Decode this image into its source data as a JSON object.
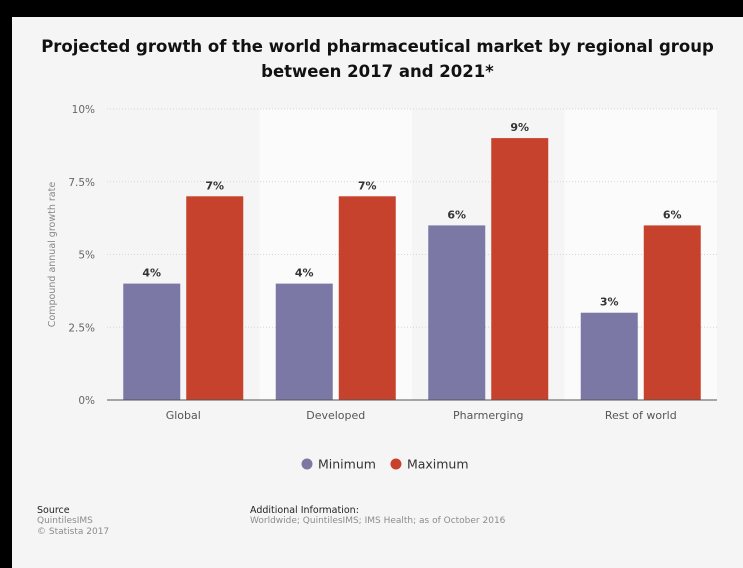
{
  "chart_data": {
    "type": "bar",
    "title": "Projected growth of the world pharmaceutical market by regional group between 2017 and 2021*",
    "ylabel": "Compound annual growth rate",
    "ylim": [
      0,
      10
    ],
    "yticks": [
      0,
      2.5,
      5,
      7.5,
      10
    ],
    "ytick_labels": [
      "0%",
      "2.5%",
      "5%",
      "7.5%",
      "10%"
    ],
    "categories": [
      "Global",
      "Developed",
      "Pharmerging",
      "Rest of world"
    ],
    "series": [
      {
        "name": "Minimum",
        "values": [
          4,
          4,
          6,
          3
        ],
        "labels": [
          "4%",
          "4%",
          "6%",
          "3%"
        ],
        "color": "#7b78a6"
      },
      {
        "name": "Maximum",
        "values": [
          7,
          7,
          9,
          6
        ],
        "labels": [
          "7%",
          "7%",
          "9%",
          "6%"
        ],
        "color": "#c6422c"
      }
    ],
    "grid": true,
    "legend": "bottom"
  },
  "footer": {
    "source_title": "Source",
    "source_line1": "QuintilesIMS",
    "source_line2": "© Statista 2017",
    "info_title": "Additional Information:",
    "info_text": "Worldwide; QuintilesIMS; IMS Health; as of October 2016"
  }
}
